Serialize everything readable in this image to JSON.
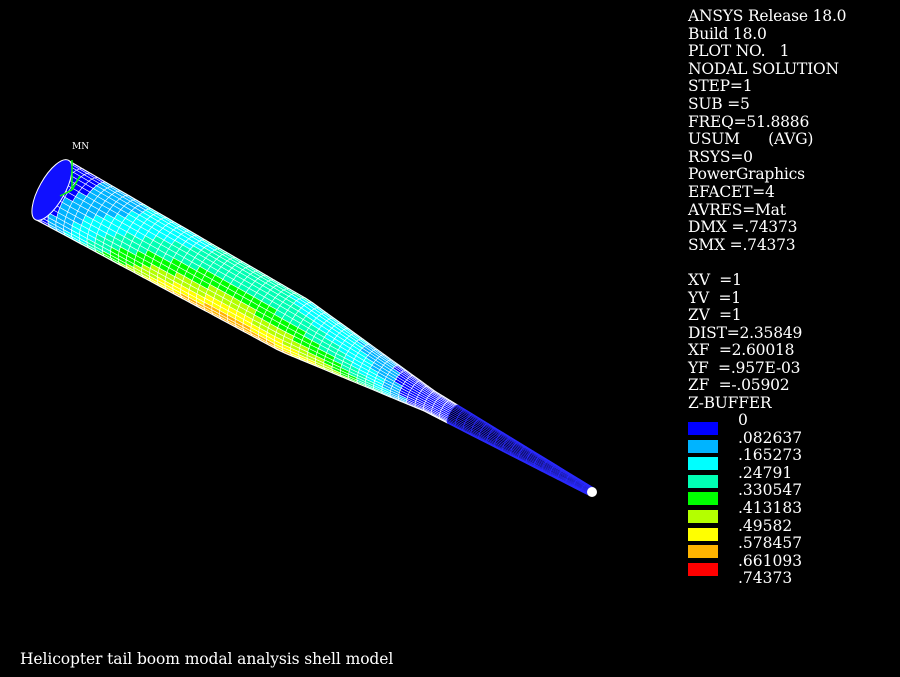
{
  "info": {
    "lines": [
      "ANSYS Release 18.0",
      "Build 18.0",
      "PLOT NO.   1",
      "NODAL SOLUTION",
      "STEP=1",
      "SUB =5",
      "FREQ=51.8886",
      "USUM      (AVG)",
      "RSYS=0",
      "PowerGraphics",
      "EFACET=4",
      "AVRES=Mat",
      "DMX =.74373",
      "SMX =.74373"
    ],
    "view_lines": [
      "XV  =1",
      "YV  =1",
      "ZV  =1",
      "DIST=2.35849",
      "XF  =2.60018",
      "YF  =.957E-03",
      "ZF  =-.05902",
      "Z-BUFFER"
    ]
  },
  "legend": {
    "labels": [
      "0",
      ".082637",
      ".165273",
      ".24791",
      ".330547",
      ".413183",
      ".49582",
      ".578457",
      ".661093",
      ".74373"
    ],
    "colors": [
      "#0000ff",
      "#00b4ff",
      "#00ffff",
      "#00ffb4",
      "#00ff00",
      "#b4ff00",
      "#ffff00",
      "#ffb400",
      "#ff0000"
    ]
  },
  "model": {
    "min_marker": "MN",
    "mesh_color": "#ffffff"
  },
  "caption": "Helicopter tail boom modal analysis shell model"
}
